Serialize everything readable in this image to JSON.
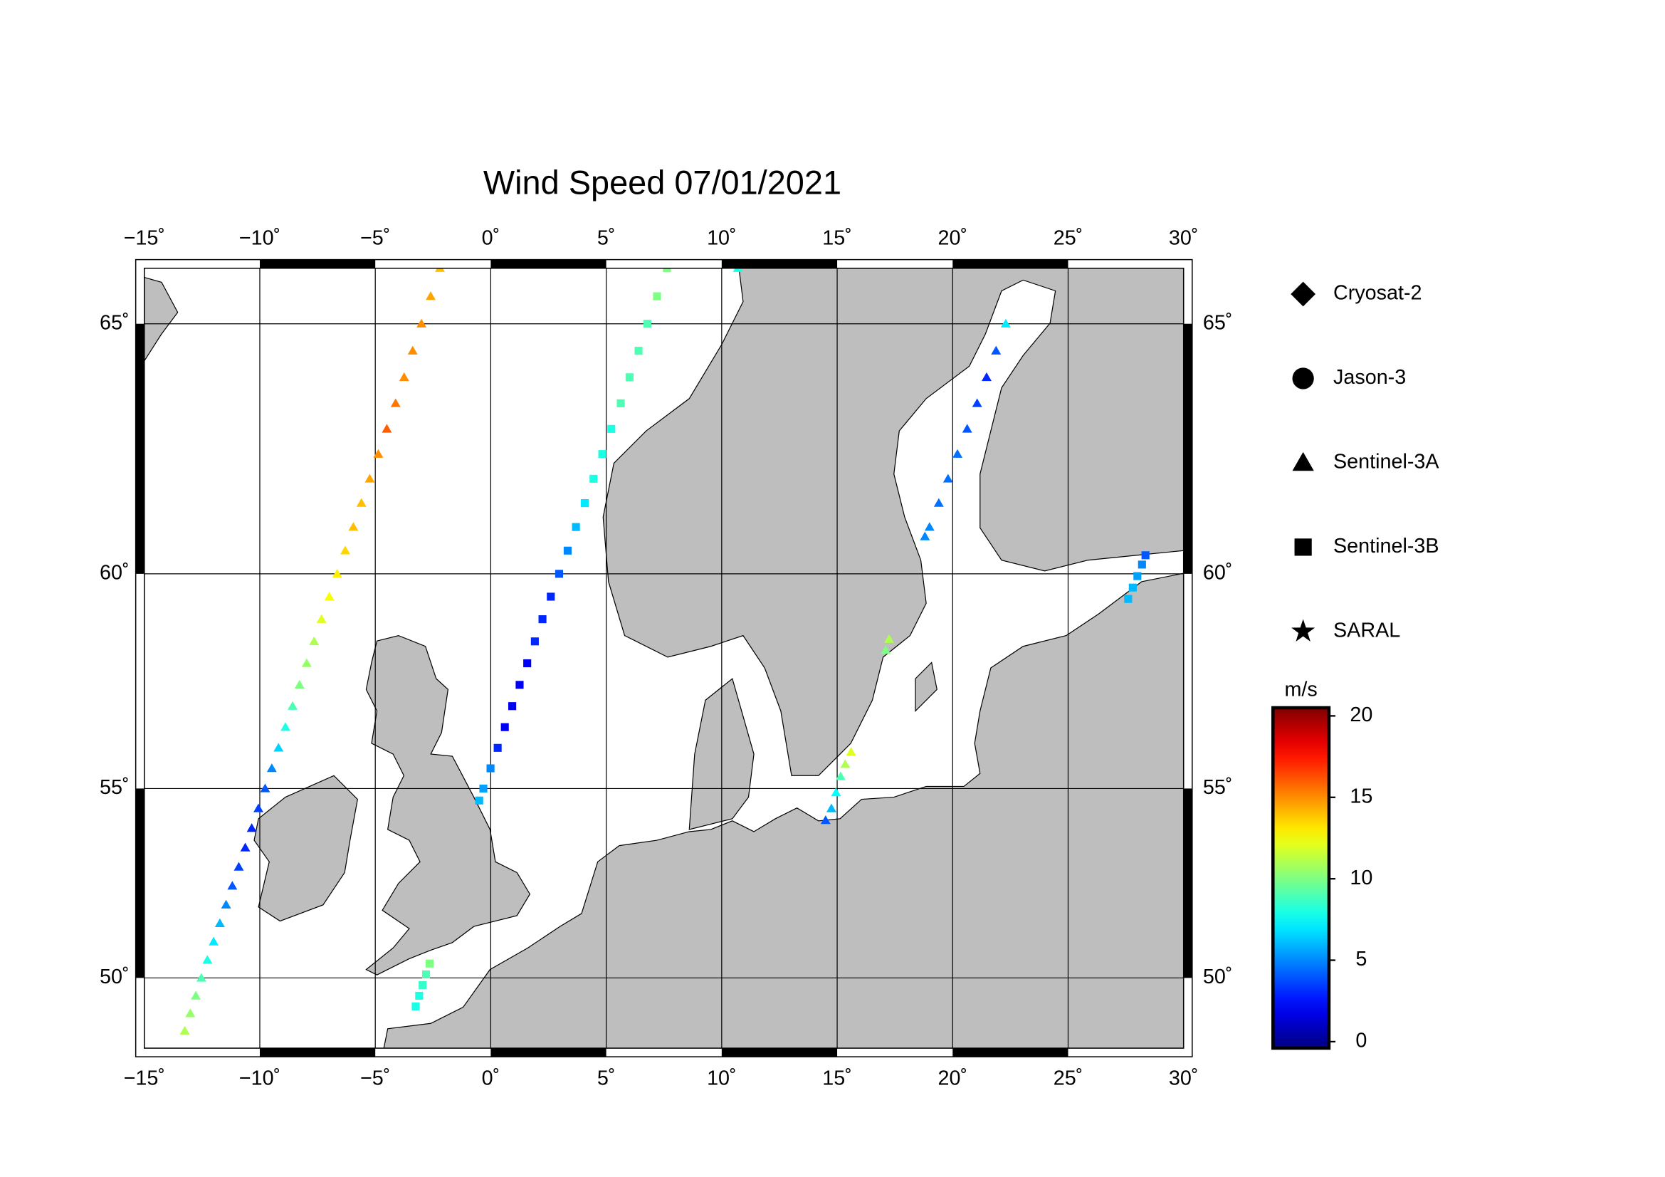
{
  "chart_data": {
    "type": "scatter",
    "projection": "mercator",
    "colormap": "jet",
    "title": "Wind Speed 07/01/2021",
    "xlim": [
      -15,
      30
    ],
    "ylim": [
      48,
      66
    ],
    "xticks": [
      {
        "value": -15,
        "label": "−15˚"
      },
      {
        "value": -10,
        "label": "−10˚"
      },
      {
        "value": -5,
        "label": "−5˚"
      },
      {
        "value": 0,
        "label": "0˚"
      },
      {
        "value": 5,
        "label": "5˚"
      },
      {
        "value": 10,
        "label": "10˚"
      },
      {
        "value": 15,
        "label": "15˚"
      },
      {
        "value": 20,
        "label": "20˚"
      },
      {
        "value": 25,
        "label": "25˚"
      },
      {
        "value": 30,
        "label": "30˚"
      }
    ],
    "yticks": [
      {
        "value": 50,
        "label": "50˚"
      },
      {
        "value": 55,
        "label": "55˚"
      },
      {
        "value": 60,
        "label": "60˚"
      },
      {
        "value": 65,
        "label": "65˚"
      }
    ],
    "grid": true,
    "colorbar": {
      "label": "m/s",
      "clim": [
        -0.4,
        20.5
      ],
      "ticks": [
        0,
        5,
        10,
        15,
        20
      ]
    },
    "series": [
      {
        "name": "Cryosat-2",
        "marker": "diamond",
        "x": [],
        "y": [],
        "values": []
      },
      {
        "name": "Jason-3",
        "marker": "circle",
        "x": [],
        "y": [],
        "values": []
      },
      {
        "name": "Sentinel-3A",
        "marker": "triangle",
        "x": [
          -13.25,
          -13.01,
          -12.77,
          -12.53,
          -12.27,
          -12.0,
          -11.73,
          -11.46,
          -11.19,
          -10.91,
          -10.63,
          -10.35,
          -10.06,
          -9.77,
          -9.48,
          -9.19,
          -8.89,
          -8.58,
          -8.28,
          -7.97,
          -7.65,
          -7.33,
          -6.99,
          -6.65,
          -6.3,
          -5.95,
          -5.6,
          -5.24,
          -4.87,
          -4.5,
          -4.12,
          -3.75,
          -3.38,
          -3.0,
          -2.6,
          -2.2,
          10.7,
          14.5,
          14.75,
          14.95,
          15.15,
          15.35,
          15.6,
          17.1,
          17.25,
          18.8,
          19.0,
          19.4,
          19.8,
          20.21,
          20.63,
          21.06,
          21.47,
          21.88,
          22.3
        ],
        "y": [
          48.5,
          49,
          49.5,
          50,
          50.5,
          51,
          51.5,
          52,
          52.5,
          53,
          53.5,
          54,
          54.5,
          55,
          55.5,
          56,
          56.5,
          57,
          57.5,
          58,
          58.5,
          59,
          59.5,
          60,
          60.5,
          61,
          61.5,
          62,
          62.5,
          63,
          63.5,
          64,
          64.5,
          65,
          65.5,
          66,
          66.0,
          54.2,
          54.5,
          54.9,
          55.3,
          55.6,
          55.9,
          58.3,
          58.55,
          60.8,
          61,
          61.5,
          62,
          62.5,
          63,
          63.5,
          64,
          64.5,
          65
        ],
        "values": [
          11,
          10.5,
          10,
          9,
          8,
          7,
          6,
          5,
          4,
          3.5,
          3,
          3,
          3.5,
          4,
          5,
          6.5,
          8,
          9,
          10,
          10.5,
          11,
          12,
          12.5,
          13,
          13.5,
          14,
          14,
          14.5,
          15,
          16,
          15.5,
          15,
          15,
          15,
          14.5,
          14,
          8,
          4,
          6,
          7.5,
          9,
          11,
          12,
          10,
          11,
          5,
          5,
          4.5,
          4.5,
          4.5,
          4,
          3.5,
          3,
          4,
          7
        ]
      },
      {
        "name": "Sentinel-3B",
        "marker": "square",
        "x": [
          -0.5,
          -0.32,
          -0.01,
          0.3,
          0.61,
          0.93,
          1.25,
          1.58,
          1.91,
          2.24,
          2.6,
          2.96,
          3.33,
          3.69,
          4.07,
          4.45,
          4.83,
          5.22,
          5.63,
          6.01,
          6.4,
          6.78,
          7.2,
          7.63,
          -3.25,
          -3.1,
          -2.95,
          -2.8,
          -2.65,
          27.6,
          27.8,
          28.0,
          28.2,
          28.35
        ],
        "y": [
          54.7,
          55,
          55.5,
          56,
          56.5,
          57,
          57.5,
          58,
          58.5,
          59,
          59.5,
          60,
          60.5,
          61,
          61.5,
          62,
          62.5,
          63,
          63.5,
          64,
          64.5,
          65,
          65.5,
          66,
          49.2,
          49.5,
          49.8,
          50.1,
          50.4,
          59.45,
          59.7,
          59.95,
          60.2,
          60.4
        ],
        "values": [
          6,
          5.5,
          5,
          3,
          2,
          2,
          2,
          2,
          3,
          3,
          3,
          4,
          5,
          6,
          7,
          8,
          8,
          8,
          9,
          9,
          9,
          9,
          10,
          10,
          8,
          8,
          8.5,
          9,
          10,
          6,
          6,
          5.5,
          5,
          4
        ]
      },
      {
        "name": "SARAL",
        "marker": "star",
        "x": [],
        "y": [],
        "values": []
      }
    ]
  }
}
